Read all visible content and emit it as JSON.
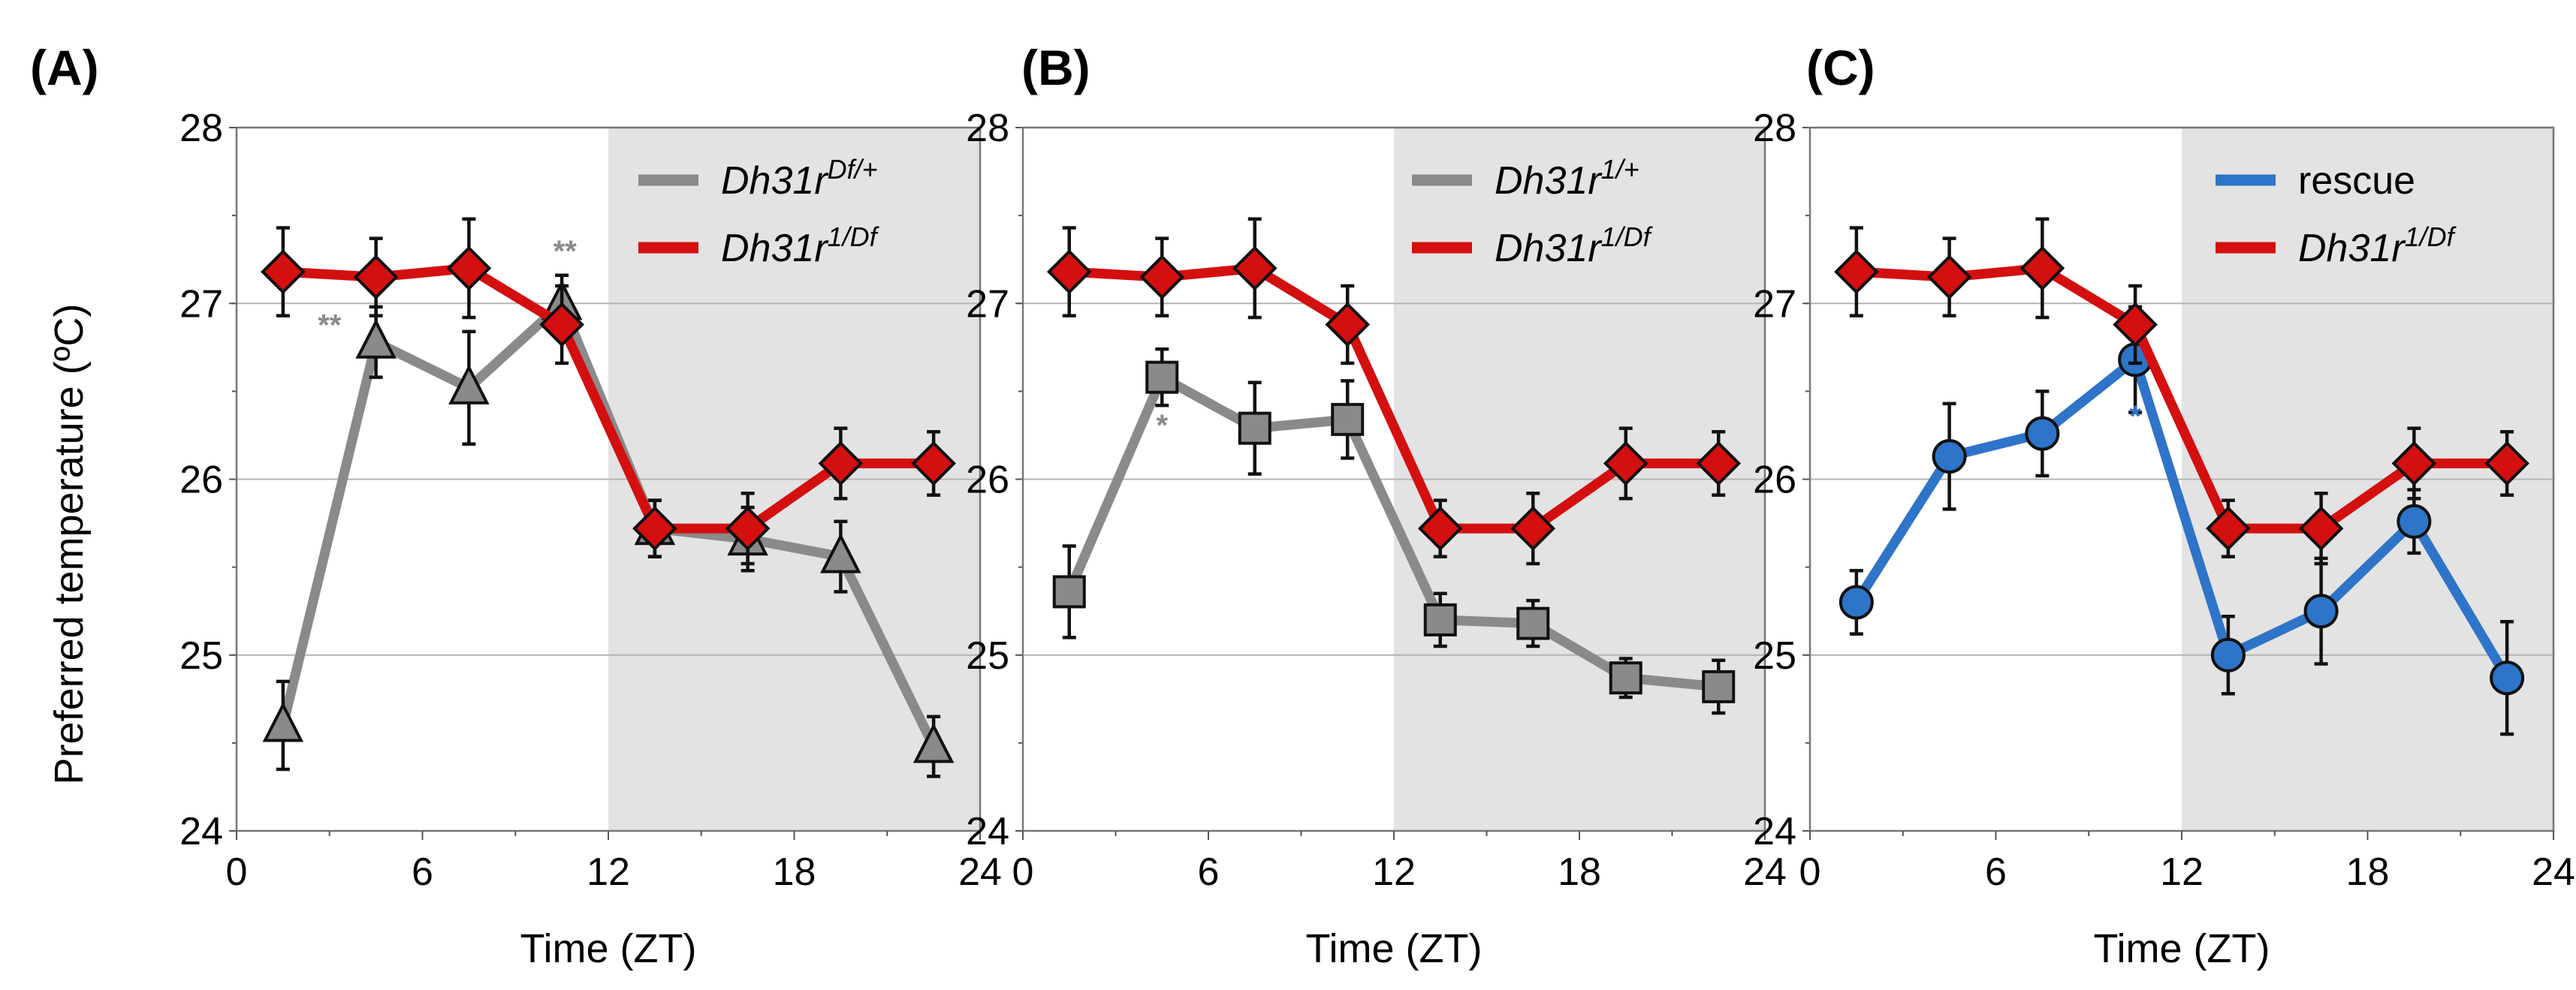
{
  "ylabel": "Preferred temperature (ºC)",
  "colors": {
    "red": "#d40f0f",
    "gray": "#8a8a8a",
    "blue": "#2e74c8",
    "dark_bg": "#e3e3e3",
    "grid": "#b4b4b4"
  },
  "chart_data": [
    {
      "type": "line",
      "panel": "(A)",
      "xlabel": "Time (ZT)",
      "xlim": [
        0,
        24
      ],
      "ylim": [
        24,
        28
      ],
      "xticks": [
        "0",
        "6",
        "12",
        "18",
        "24"
      ],
      "yticks": [
        "24",
        "25",
        "26",
        "27",
        "28"
      ],
      "dark_phase": [
        12,
        24
      ],
      "legend": [
        {
          "base": "Dh31r",
          "sup": "Df/+",
          "color": "#8a8a8a",
          "style": "italic"
        },
        {
          "base": "Dh31r",
          "sup": "1/Df",
          "color": "#d40f0f",
          "style": "italic"
        }
      ],
      "series": [
        {
          "name": "Dh31r Df/+",
          "color": "#8a8a8a",
          "marker": "triangle",
          "x": [
            1.5,
            4.5,
            7.5,
            10.5,
            13.5,
            16.5,
            19.5,
            22.5
          ],
          "y": [
            24.6,
            26.78,
            26.52,
            27.0,
            25.72,
            25.66,
            25.56,
            24.48
          ],
          "err": [
            0.25,
            0.2,
            0.32,
            0.16,
            0.16,
            0.18,
            0.2,
            0.17
          ]
        },
        {
          "name": "Dh31r 1/Df",
          "color": "#d40f0f",
          "marker": "diamond",
          "x": [
            1.5,
            4.5,
            7.5,
            10.5,
            13.5,
            16.5,
            19.5,
            22.5
          ],
          "y": [
            27.18,
            27.15,
            27.2,
            26.88,
            25.72,
            25.72,
            26.09,
            26.09
          ],
          "err": [
            0.25,
            0.22,
            0.28,
            0.22,
            0.16,
            0.2,
            0.2,
            0.18
          ]
        }
      ],
      "annotations": [
        {
          "text": "**",
          "x": 3.0,
          "y": 26.82,
          "color": "#8a8a8a"
        },
        {
          "text": "**",
          "x": 10.6,
          "y": 27.24,
          "color": "#8a8a8a"
        }
      ]
    },
    {
      "type": "line",
      "panel": "(B)",
      "xlabel": "Time (ZT)",
      "xlim": [
        0,
        24
      ],
      "ylim": [
        24,
        28
      ],
      "xticks": [
        "0",
        "6",
        "12",
        "18",
        "24"
      ],
      "yticks": [
        "24",
        "25",
        "26",
        "27",
        "28"
      ],
      "dark_phase": [
        12,
        24
      ],
      "legend": [
        {
          "base": "Dh31r",
          "sup": "1/+",
          "color": "#8a8a8a",
          "style": "italic"
        },
        {
          "base": "Dh31r",
          "sup": "1/Df",
          "color": "#d40f0f",
          "style": "italic"
        }
      ],
      "series": [
        {
          "name": "Dh31r 1/+",
          "color": "#8a8a8a",
          "marker": "square",
          "x": [
            1.5,
            4.5,
            7.5,
            10.5,
            13.5,
            16.5,
            19.5,
            22.5
          ],
          "y": [
            25.36,
            26.58,
            26.29,
            26.34,
            25.2,
            25.18,
            24.87,
            24.82
          ],
          "err": [
            0.26,
            0.16,
            0.26,
            0.22,
            0.15,
            0.13,
            0.11,
            0.15
          ]
        },
        {
          "name": "Dh31r 1/Df",
          "color": "#d40f0f",
          "marker": "diamond",
          "x": [
            1.5,
            4.5,
            7.5,
            10.5,
            13.5,
            16.5,
            19.5,
            22.5
          ],
          "y": [
            27.18,
            27.15,
            27.2,
            26.88,
            25.72,
            25.72,
            26.09,
            26.09
          ],
          "err": [
            0.25,
            0.22,
            0.28,
            0.22,
            0.16,
            0.2,
            0.2,
            0.18
          ]
        }
      ],
      "annotations": [
        {
          "text": "*",
          "x": 4.5,
          "y": 26.25,
          "color": "#8a8a8a"
        }
      ]
    },
    {
      "type": "line",
      "panel": "(C)",
      "xlabel": "Time (ZT)",
      "xlim": [
        0,
        24
      ],
      "ylim": [
        24,
        28
      ],
      "xticks": [
        "0",
        "6",
        "12",
        "18",
        "24"
      ],
      "yticks": [
        "24",
        "25",
        "26",
        "27",
        "28"
      ],
      "dark_phase": [
        12,
        24
      ],
      "legend": [
        {
          "base": "rescue",
          "sup": "",
          "color": "#2e74c8",
          "style": "normal"
        },
        {
          "base": "Dh31r",
          "sup": "1/Df",
          "color": "#d40f0f",
          "style": "italic"
        }
      ],
      "series": [
        {
          "name": "rescue",
          "color": "#2e74c8",
          "marker": "circle",
          "x": [
            1.5,
            4.5,
            7.5,
            10.5,
            13.5,
            16.5,
            19.5,
            22.5
          ],
          "y": [
            25.3,
            26.13,
            26.26,
            26.68,
            25.0,
            25.25,
            25.76,
            24.87
          ],
          "err": [
            0.18,
            0.3,
            0.24,
            0.3,
            0.22,
            0.3,
            0.18,
            0.32
          ]
        },
        {
          "name": "Dh31r 1/Df",
          "color": "#d40f0f",
          "marker": "diamond",
          "x": [
            1.5,
            4.5,
            7.5,
            10.5,
            13.5,
            16.5,
            19.5,
            22.5
          ],
          "y": [
            27.18,
            27.15,
            27.2,
            26.88,
            25.72,
            25.72,
            26.09,
            26.09
          ],
          "err": [
            0.25,
            0.22,
            0.28,
            0.22,
            0.16,
            0.2,
            0.2,
            0.18
          ]
        }
      ],
      "annotations": [
        {
          "text": "*",
          "x": 10.5,
          "y": 26.3,
          "color": "#2e74c8"
        }
      ]
    }
  ]
}
